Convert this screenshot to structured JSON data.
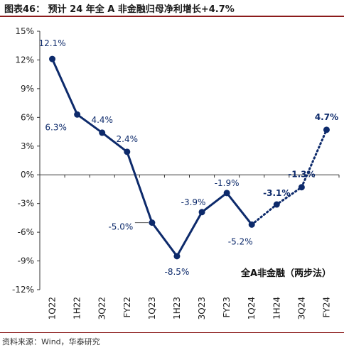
{
  "figure": {
    "title": "图表46：  预计 24 年全 A 非金融归母净利增长+4.7%",
    "source": "资料来源：Wind，华泰研究"
  },
  "chart_data": {
    "type": "line",
    "categories": [
      "1Q22",
      "1H22",
      "3Q22",
      "FY22",
      "1Q23",
      "1H23",
      "3Q23",
      "FY23",
      "1Q24",
      "1H24",
      "3Q24",
      "FY24"
    ],
    "yticks": [
      "15%",
      "12%",
      "9%",
      "6%",
      "3%",
      "0%",
      "-3%",
      "-6%",
      "-9%",
      "-12%"
    ],
    "ylim": [
      -12,
      15
    ],
    "series": [
      {
        "name": "全A非金融（两步法）",
        "color": "#0d2a6b",
        "values": [
          12.1,
          6.3,
          4.4,
          2.4,
          -5.0,
          -8.5,
          -3.9,
          -1.9,
          -5.2,
          -3.1,
          -1.3,
          4.7
        ],
        "labels": [
          "12.1%",
          "6.3%",
          "4.4%",
          "2.4%",
          "-5.0%",
          "-8.5%",
          "-3.9%",
          "-1.9%",
          "-5.2%",
          "-3.1%",
          "-1.3%",
          "4.7%"
        ],
        "solid_until_index": 8
      }
    ],
    "legend_position": "bottom-right",
    "grid": false
  }
}
